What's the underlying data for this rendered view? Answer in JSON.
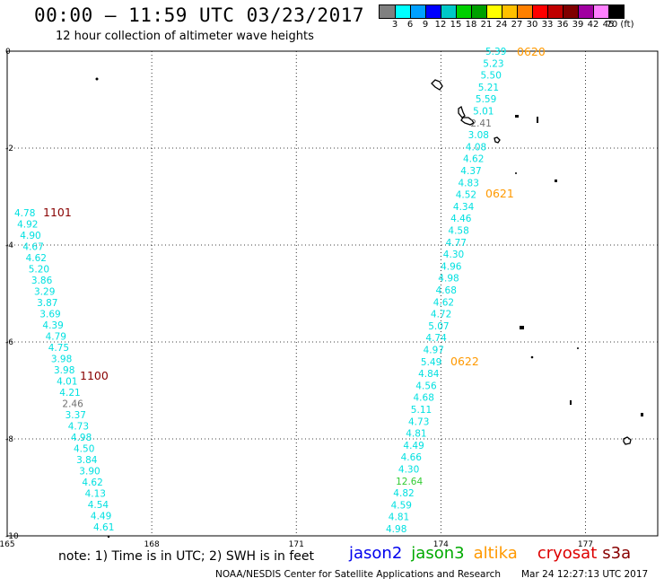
{
  "header": {
    "title": "00:00 – 11:59 UTC 03/23/2017",
    "subtitle": "12 hour collection of altimeter wave heights"
  },
  "colorbar": {
    "colors": [
      "#808080",
      "#00ffff",
      "#00a0ff",
      "#0000ff",
      "#00c8c8",
      "#00d000",
      "#00a000",
      "#ffff00",
      "#ffc000",
      "#ff8000",
      "#ff0000",
      "#c00000",
      "#800000",
      "#a000a0",
      "#ff80ff",
      "#000000"
    ],
    "labels": [
      "3",
      "6",
      "9",
      "12",
      "15",
      "18",
      "21",
      "24",
      "27",
      "30",
      "33",
      "36",
      "39",
      "42",
      "45",
      "70 (ft)"
    ]
  },
  "axes": {
    "y_ticks": [
      "0",
      "-2",
      "-4",
      "-6",
      "-8",
      "-10"
    ],
    "x_ticks": [
      "165",
      "168",
      "171",
      "174",
      "177"
    ],
    "x_range": [
      165,
      178.5
    ],
    "y_range": [
      -10,
      0
    ]
  },
  "pass_labels": [
    {
      "text": "0620",
      "color": "#ff9900"
    },
    {
      "text": "0621",
      "color": "#ff9900"
    },
    {
      "text": "0622",
      "color": "#ff9900"
    },
    {
      "text": "1101",
      "color": "#880000"
    },
    {
      "text": "1100",
      "color": "#880000"
    }
  ],
  "tracks": {
    "left_track": {
      "values": [
        "4.78",
        "4.92",
        "4.90",
        "4.67",
        "4.62",
        "5.20",
        "3.86",
        "3.29",
        "3.87",
        "3.69",
        "4.39",
        "4.79",
        "4.75",
        "3.98",
        "3.98",
        "4.01",
        "4.21",
        "2.46",
        "3.37",
        "4.73",
        "4.98",
        "4.50",
        "3.84",
        "3.90",
        "4.62",
        "4.13",
        "4.54",
        "4.49",
        "4.61"
      ],
      "colors": [
        "#00e0e0",
        "#00e0e0",
        "#00e0e0",
        "#00e0e0",
        "#00e0e0",
        "#00e0e0",
        "#00e0e0",
        "#00e0e0",
        "#00e0e0",
        "#00e0e0",
        "#00e0e0",
        "#00e0e0",
        "#00e0e0",
        "#00e0e0",
        "#00e0e0",
        "#00e0e0",
        "#00e0e0",
        "#707070",
        "#00e0e0",
        "#00e0e0",
        "#00e0e0",
        "#00e0e0",
        "#00e0e0",
        "#00e0e0",
        "#00e0e0",
        "#00e0e0",
        "#00e0e0",
        "#00e0e0",
        "#00e0e0"
      ]
    },
    "right_track": {
      "values": [
        "5.39",
        "5.23",
        "5.50",
        "5.21",
        "5.59",
        "5.01",
        "2.41",
        "3.08",
        "4.08",
        "4.62",
        "4.37",
        "4.83",
        "4.52",
        "4.34",
        "4.46",
        "4.58",
        "4.77",
        "4.30",
        "4.96",
        "4.98",
        "4.68",
        "4.62",
        "4.72",
        "5.07",
        "4.74",
        "4.97",
        "5.49",
        "4.84",
        "4.56",
        "4.68",
        "5.11",
        "4.73",
        "4.81",
        "4.49",
        "4.66",
        "4.30",
        "12.64",
        "4.82",
        "4.59",
        "4.81",
        "4.98"
      ],
      "colors": [
        "#00e0e0",
        "#00e0e0",
        "#00e0e0",
        "#00e0e0",
        "#00e0e0",
        "#00e0e0",
        "#707070",
        "#00e0e0",
        "#00e0e0",
        "#00e0e0",
        "#00e0e0",
        "#00e0e0",
        "#00e0e0",
        "#00e0e0",
        "#00e0e0",
        "#00e0e0",
        "#00e0e0",
        "#00e0e0",
        "#00e0e0",
        "#00e0e0",
        "#00e0e0",
        "#00e0e0",
        "#00e0e0",
        "#00e0e0",
        "#00e0e0",
        "#00e0e0",
        "#00e0e0",
        "#00e0e0",
        "#00e0e0",
        "#00e0e0",
        "#00e0e0",
        "#00e0e0",
        "#00e0e0",
        "#00e0e0",
        "#00e0e0",
        "#00e0e0",
        "#33cc33",
        "#00e0e0",
        "#00e0e0",
        "#00e0e0",
        "#00e0e0"
      ]
    }
  },
  "footer": {
    "note": "note: 1) Time is in UTC; 2) SWH is in feet",
    "legend": [
      {
        "text": "jason2",
        "color": "#0000ee"
      },
      {
        "text": "jason3",
        "color": "#00aa00"
      },
      {
        "text": "altika",
        "color": "#ff9900"
      },
      {
        "text": "cryosat",
        "color": "#dd0000"
      },
      {
        "text": "s3a",
        "color": "#880000"
      }
    ],
    "credit": "NOAA/NESDIS Center for Satellite Applications and Research",
    "timestamp": "Mar 24 12:27:13 UTC 2017"
  }
}
